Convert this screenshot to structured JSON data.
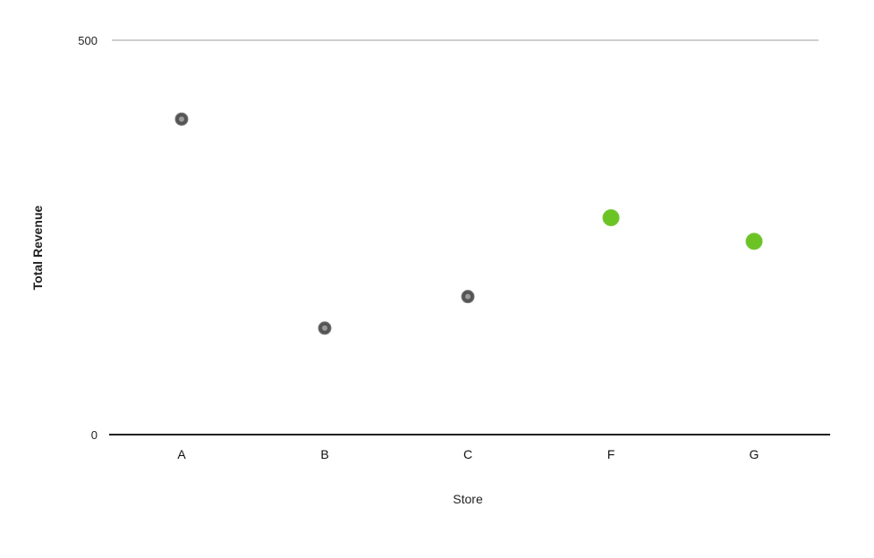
{
  "chart_data": {
    "type": "scatter",
    "title": "",
    "xlabel": "Store",
    "ylabel": "Total Revenue",
    "ylim": [
      0,
      500
    ],
    "y_ticks": [
      "0",
      "500"
    ],
    "categories": [
      "A",
      "B",
      "C",
      "F",
      "G"
    ],
    "values": [
      400,
      135,
      175,
      275,
      245
    ],
    "point_colors": [
      "#555555",
      "#555555",
      "#555555",
      "#6cc324",
      "#6cc324"
    ],
    "grid": false
  },
  "colors": {
    "axis": "#222222",
    "top_line": "#cfcfcf"
  }
}
